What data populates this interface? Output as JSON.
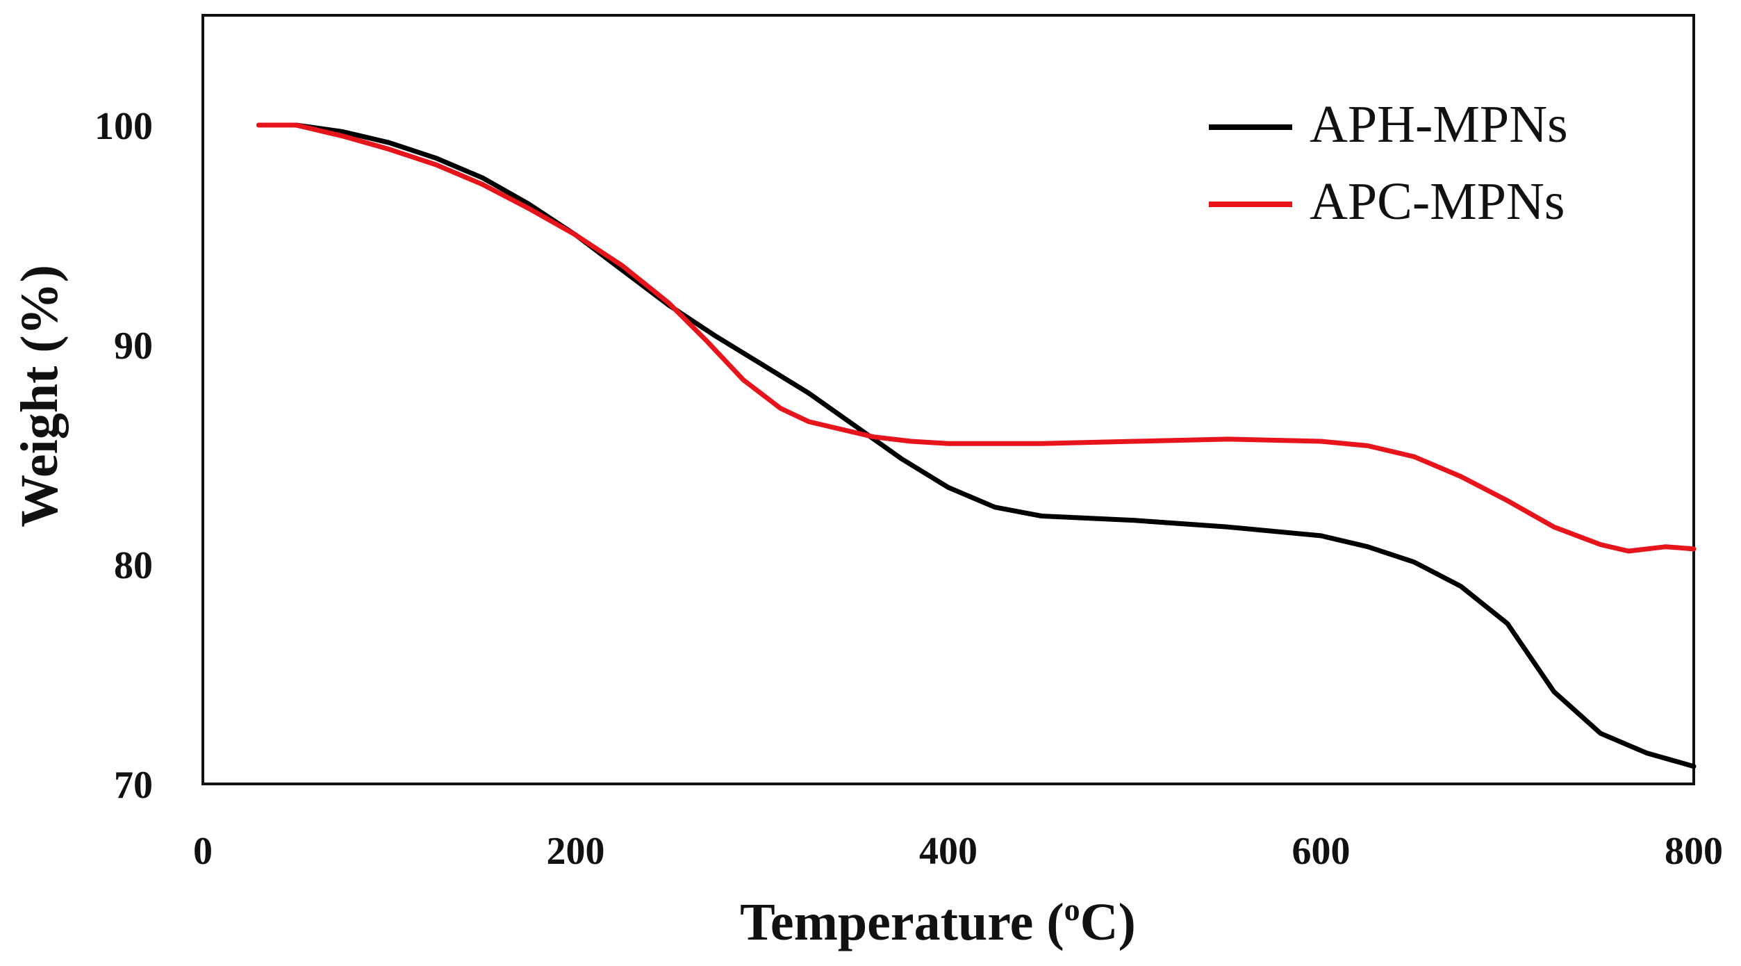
{
  "chart_data": {
    "type": "line",
    "title": "",
    "xlabel": "Temperature (",
    "xlabel_sup": "o",
    "xlabel_unit": "C)",
    "ylabel": "Weight (%)",
    "xlim": [
      0,
      800
    ],
    "ylim": [
      70,
      105
    ],
    "x_ticks": [
      0,
      200,
      400,
      600,
      800
    ],
    "y_ticks": [
      70,
      80,
      90,
      100
    ],
    "x_tick_labels": [
      "0",
      "200",
      "400",
      "600",
      "800"
    ],
    "y_tick_labels": [
      "70",
      "80",
      "90",
      "100"
    ],
    "grid": false,
    "legend_position": "top-right",
    "series": [
      {
        "name": "APH-MPNs",
        "color": "#000000",
        "x": [
          30,
          50,
          75,
          100,
          125,
          150,
          175,
          200,
          225,
          250,
          275,
          300,
          325,
          350,
          375,
          400,
          425,
          450,
          475,
          500,
          550,
          600,
          625,
          650,
          675,
          700,
          725,
          750,
          775,
          800
        ],
        "y": [
          100,
          100,
          99.7,
          99.2,
          98.5,
          97.6,
          96.4,
          95,
          93.4,
          91.8,
          90.4,
          89.1,
          87.8,
          86.3,
          84.8,
          83.5,
          82.6,
          82.2,
          82.1,
          82,
          81.7,
          81.3,
          80.8,
          80.1,
          79,
          77.3,
          74.2,
          72.3,
          71.4,
          70.8
        ]
      },
      {
        "name": "APC-MPNs",
        "color": "#e8141c",
        "x": [
          30,
          50,
          75,
          100,
          125,
          150,
          175,
          200,
          225,
          250,
          270,
          290,
          310,
          325,
          340,
          360,
          380,
          400,
          450,
          500,
          550,
          600,
          625,
          650,
          675,
          700,
          725,
          750,
          765,
          785,
          800
        ],
        "y": [
          100,
          100,
          99.5,
          98.9,
          98.2,
          97.3,
          96.2,
          95,
          93.6,
          91.9,
          90.2,
          88.4,
          87.1,
          86.5,
          86.2,
          85.8,
          85.6,
          85.5,
          85.5,
          85.6,
          85.7,
          85.6,
          85.4,
          84.9,
          84,
          82.9,
          81.7,
          80.9,
          80.6,
          80.8,
          80.7
        ]
      }
    ]
  }
}
